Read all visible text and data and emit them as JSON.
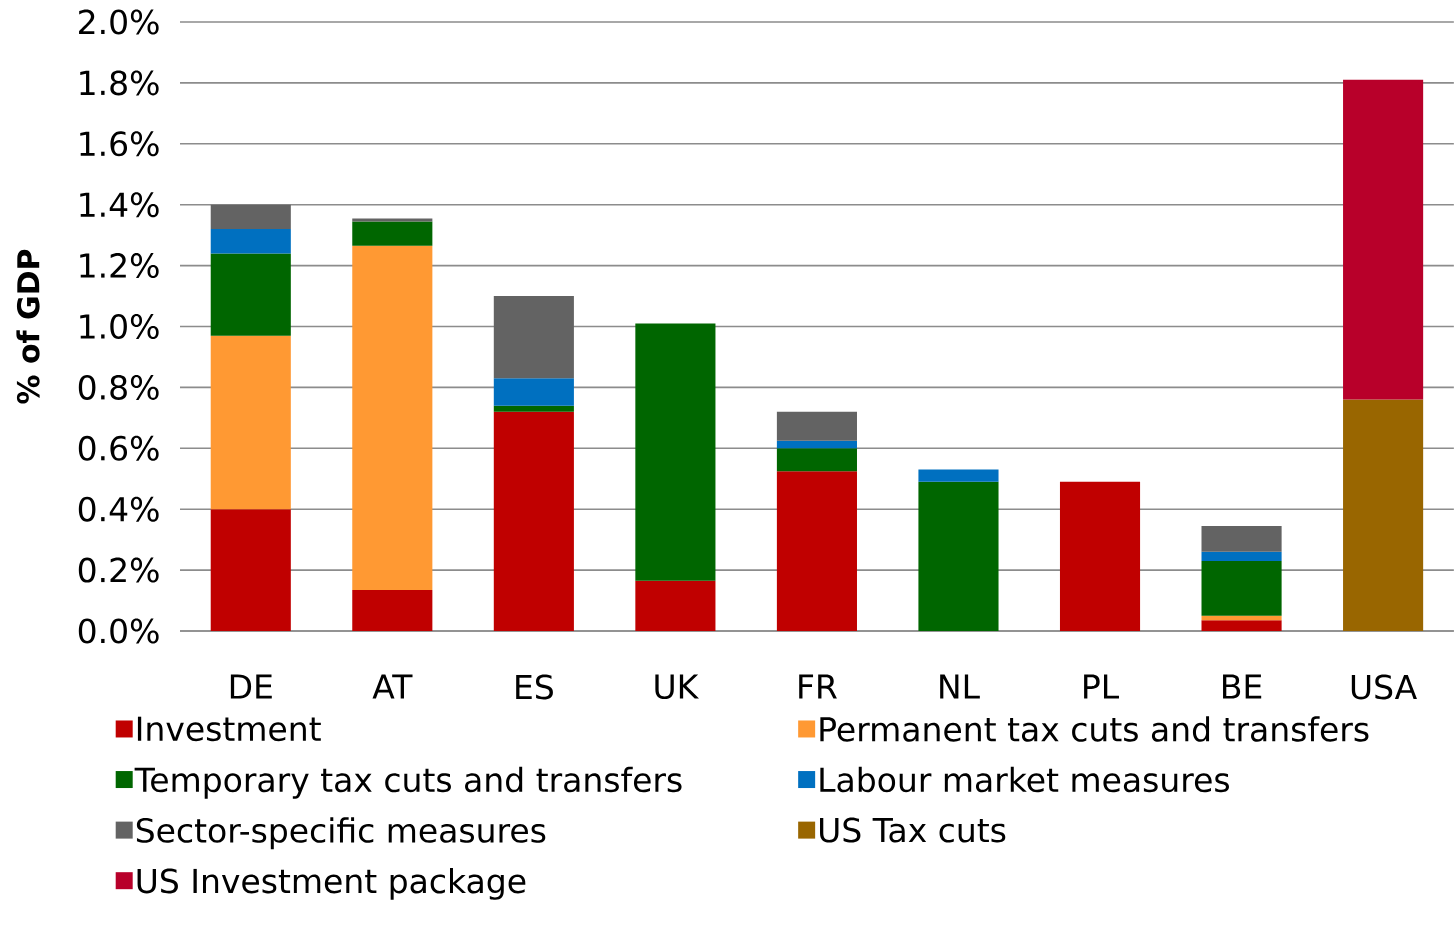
{
  "chart_data": {
    "type": "bar",
    "stacked": true,
    "ylabel": "% of GDP",
    "categories": [
      "DE",
      "AT",
      "ES",
      "UK",
      "FR",
      "NL",
      "PL",
      "BE",
      "USA"
    ],
    "series": [
      {
        "name": "Investment",
        "color": "#c00000",
        "values": [
          0.4,
          0.135,
          0.72,
          0.165,
          0.525,
          null,
          0.49,
          0.035,
          null
        ]
      },
      {
        "name": "Permanent tax cuts and transfers",
        "color": "#ff9933",
        "values": [
          0.57,
          1.13,
          null,
          null,
          null,
          null,
          null,
          0.015,
          null
        ]
      },
      {
        "name": "Temporary tax cuts and transfers",
        "color": "#006600",
        "values": [
          0.27,
          0.08,
          0.02,
          0.845,
          0.075,
          0.49,
          null,
          0.18,
          null
        ]
      },
      {
        "name": "Labour market measures",
        "color": "#0070c0",
        "values": [
          0.08,
          null,
          0.09,
          null,
          0.025,
          0.04,
          null,
          0.03,
          null
        ]
      },
      {
        "name": "Sector-specific measures",
        "color": "#636363",
        "values": [
          0.08,
          0.01,
          0.27,
          null,
          0.095,
          null,
          null,
          0.085,
          null
        ]
      },
      {
        "name": "US Tax cuts",
        "color": "#996600",
        "values": [
          null,
          null,
          null,
          null,
          null,
          null,
          null,
          null,
          0.76
        ]
      },
      {
        "name": "US Investment package",
        "color": "#b8002a",
        "values": [
          null,
          null,
          null,
          null,
          null,
          null,
          null,
          null,
          1.05
        ]
      }
    ],
    "ylim": [
      0,
      2.0
    ],
    "yticks": [
      {
        "value": 0,
        "label": "0.0%"
      },
      {
        "value": 0.2,
        "label": "0.2%"
      },
      {
        "value": 0.4,
        "label": "0.4%"
      },
      {
        "value": 0.6,
        "label": "0.6%"
      },
      {
        "value": 0.8,
        "label": "0.8%"
      },
      {
        "value": 1.0,
        "label": "1.0%"
      },
      {
        "value": 1.2,
        "label": "1.2%"
      },
      {
        "value": 1.4,
        "label": "1.4%"
      },
      {
        "value": 1.6,
        "label": "1.6%"
      },
      {
        "value": 1.8,
        "label": "1.8%"
      },
      {
        "value": 2.0,
        "label": "2.0%"
      }
    ],
    "grid": "y",
    "legend": "bottom"
  }
}
